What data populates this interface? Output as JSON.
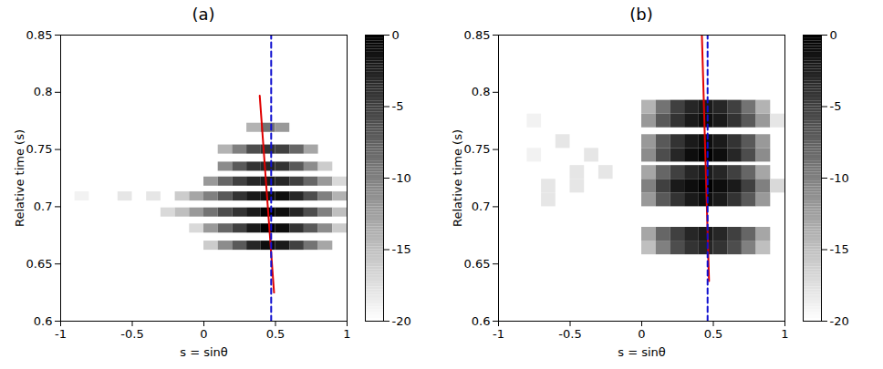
{
  "chart_data": [
    {
      "type": "heatmap",
      "title": "(a)",
      "x_label": "s = sinθ",
      "y_label": "Relative time (s)",
      "xlim": [
        -1,
        1
      ],
      "xticks": [
        -1,
        -0.5,
        0,
        0.5,
        1
      ],
      "ylim": [
        0.6,
        0.85
      ],
      "yticks": [
        0.6,
        0.65,
        0.7,
        0.75,
        0.8,
        0.85
      ],
      "heatmap": {
        "cell_width": 0.1,
        "cell_height": 0.008,
        "s": [
          -0.95,
          -0.85,
          -0.75,
          -0.65,
          -0.55,
          -0.45,
          -0.35,
          -0.25,
          -0.15,
          -0.05,
          0.05,
          0.15,
          0.25,
          0.35,
          0.45,
          0.55,
          0.65,
          0.75,
          0.85,
          0.95
        ],
        "t": [
          0.666,
          0.681,
          0.695,
          0.709,
          0.722,
          0.735,
          0.75,
          0.769
        ],
        "values": [
          [
            null,
            null,
            null,
            null,
            null,
            null,
            null,
            null,
            null,
            null,
            -16,
            -11,
            -7,
            -3,
            -1,
            -2,
            -5,
            -9,
            -13,
            null
          ],
          [
            null,
            null,
            null,
            null,
            null,
            null,
            null,
            null,
            null,
            -17,
            -12,
            -8,
            -5,
            -2,
            0,
            -1,
            -4,
            -7,
            -11,
            -16
          ],
          [
            null,
            null,
            null,
            null,
            null,
            null,
            null,
            -17,
            -15,
            -12,
            -9,
            -6,
            -4,
            -2,
            0,
            -1,
            -3,
            -6,
            -10,
            -15
          ],
          [
            null,
            -19,
            null,
            null,
            -18,
            null,
            -18,
            null,
            -16,
            -13,
            -10,
            -7,
            -4,
            -2,
            -1,
            -1,
            -3,
            -6,
            -10,
            -14
          ],
          [
            null,
            null,
            null,
            null,
            null,
            null,
            null,
            null,
            null,
            null,
            -12,
            -8,
            -5,
            -3,
            -2,
            -3,
            -5,
            -8,
            -12,
            -17
          ],
          [
            null,
            null,
            null,
            null,
            null,
            null,
            null,
            null,
            null,
            null,
            null,
            -11,
            -7,
            -4,
            -3,
            -4,
            -7,
            -11,
            -16,
            null
          ],
          [
            null,
            null,
            null,
            null,
            null,
            null,
            null,
            null,
            null,
            null,
            null,
            -14,
            -10,
            -6,
            -4,
            -5,
            -8,
            -13,
            null,
            null
          ],
          [
            null,
            null,
            null,
            null,
            null,
            null,
            null,
            null,
            null,
            null,
            null,
            null,
            null,
            -14,
            -9,
            -12,
            null,
            null,
            null,
            null
          ]
        ]
      },
      "colorbar": {
        "range": [
          -20,
          0
        ],
        "ticks": [
          -20,
          -15,
          -10,
          -5,
          0
        ]
      },
      "lines": [
        {
          "color": "#e00000",
          "line_style": "solid",
          "s": [
            0.39,
            0.49
          ],
          "t": [
            0.797,
            0.625
          ]
        },
        {
          "color": "#1010d0",
          "line_style": "dashed",
          "s": [
            0.47,
            0.47
          ],
          "t": [
            0.6,
            0.85
          ]
        }
      ]
    },
    {
      "type": "heatmap",
      "title": "(b)",
      "x_label": "s = sinθ",
      "y_label": "Relative time (s)",
      "xlim": [
        -1,
        1
      ],
      "xticks": [
        -1,
        -0.5,
        0,
        0.5,
        1
      ],
      "ylim": [
        0.6,
        0.85
      ],
      "yticks": [
        0.6,
        0.65,
        0.7,
        0.75,
        0.8,
        0.85
      ],
      "heatmap": {
        "cell_width": 0.1,
        "cell_height": 0.012,
        "s": [
          -0.95,
          -0.85,
          -0.75,
          -0.65,
          -0.55,
          -0.45,
          -0.35,
          -0.25,
          -0.15,
          -0.05,
          0.05,
          0.15,
          0.25,
          0.35,
          0.45,
          0.55,
          0.65,
          0.75,
          0.85,
          0.95
        ],
        "t": [
          0.664,
          0.676,
          0.706,
          0.718,
          0.73,
          0.745,
          0.757,
          0.775,
          0.787
        ],
        "values": [
          [
            null,
            null,
            null,
            null,
            null,
            null,
            null,
            null,
            null,
            null,
            -15,
            -10,
            -6,
            -4,
            -3,
            -4,
            -6,
            -10,
            -15,
            null
          ],
          [
            null,
            null,
            null,
            null,
            null,
            null,
            null,
            null,
            null,
            null,
            -13,
            -8,
            -5,
            -3,
            -2,
            -3,
            -5,
            -8,
            -13,
            null
          ],
          [
            null,
            null,
            null,
            -18,
            null,
            null,
            null,
            null,
            null,
            null,
            -12,
            -7,
            -4,
            -2,
            -1,
            -2,
            -4,
            -7,
            -12,
            null
          ],
          [
            null,
            null,
            null,
            -18,
            null,
            -18,
            null,
            null,
            null,
            null,
            -10,
            -5,
            -2,
            -1,
            0,
            -1,
            -2,
            -5,
            -10,
            -17
          ],
          [
            null,
            null,
            null,
            null,
            null,
            -18,
            null,
            -18,
            null,
            null,
            -13,
            -8,
            -5,
            -3,
            -2,
            -3,
            -5,
            -8,
            -13,
            null
          ],
          [
            null,
            null,
            -19,
            null,
            null,
            null,
            -18,
            null,
            null,
            null,
            -11,
            -6,
            -3,
            -1,
            0,
            -1,
            -3,
            -6,
            -11,
            null
          ],
          [
            null,
            null,
            null,
            null,
            -18,
            null,
            null,
            null,
            null,
            null,
            -12,
            -7,
            -4,
            -2,
            -1,
            -2,
            -4,
            -7,
            -12,
            null
          ],
          [
            null,
            null,
            -19,
            null,
            null,
            null,
            null,
            null,
            null,
            null,
            -12,
            -7,
            -4,
            -2,
            -1,
            -2,
            -4,
            -7,
            -12,
            -18
          ],
          [
            null,
            null,
            null,
            null,
            null,
            null,
            null,
            null,
            null,
            null,
            -14,
            -9,
            -5,
            -3,
            -2,
            -3,
            -5,
            -9,
            -14,
            null
          ]
        ]
      },
      "colorbar": {
        "range": [
          -20,
          0
        ],
        "ticks": [
          -20,
          -15,
          -10,
          -5,
          0
        ]
      },
      "lines": [
        {
          "color": "#e00000",
          "line_style": "solid",
          "s": [
            0.42,
            0.47
          ],
          "t": [
            0.85,
            0.635
          ]
        },
        {
          "color": "#1010d0",
          "line_style": "dashed",
          "s": [
            0.46,
            0.46
          ],
          "t": [
            0.6,
            0.85
          ]
        }
      ]
    }
  ]
}
